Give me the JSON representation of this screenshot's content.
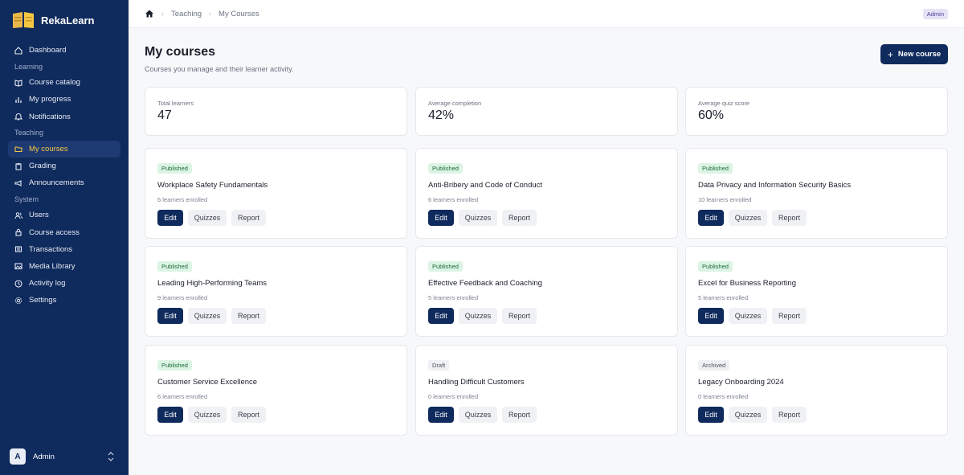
{
  "app": {
    "name": "RekaLearn"
  },
  "sidebar": {
    "items": [
      {
        "type": "item",
        "label": "Dashboard",
        "icon": "home-icon",
        "active": false
      },
      {
        "type": "section",
        "label": "Learning"
      },
      {
        "type": "item",
        "label": "Course catalog",
        "icon": "book-open-icon",
        "active": false
      },
      {
        "type": "item",
        "label": "My progress",
        "icon": "bar-chart-icon",
        "active": false
      },
      {
        "type": "item",
        "label": "Notifications",
        "icon": "bell-icon",
        "active": false
      },
      {
        "type": "section",
        "label": "Teaching"
      },
      {
        "type": "item",
        "label": "My courses",
        "icon": "folder-icon",
        "active": true
      },
      {
        "type": "item",
        "label": "Grading",
        "icon": "clipboard-icon",
        "active": false
      },
      {
        "type": "item",
        "label": "Announcements",
        "icon": "megaphone-icon",
        "active": false
      },
      {
        "type": "section",
        "label": "System"
      },
      {
        "type": "item",
        "label": "Users",
        "icon": "users-icon",
        "active": false
      },
      {
        "type": "item",
        "label": "Course access",
        "icon": "lock-icon",
        "active": false
      },
      {
        "type": "item",
        "label": "Transactions",
        "icon": "receipt-icon",
        "active": false
      },
      {
        "type": "item",
        "label": "Media Library",
        "icon": "image-icon",
        "active": false
      },
      {
        "type": "item",
        "label": "Activity log",
        "icon": "clock-icon",
        "active": false
      },
      {
        "type": "item",
        "label": "Settings",
        "icon": "gear-icon",
        "active": false
      }
    ],
    "user": {
      "initial": "A",
      "name": "Admin"
    }
  },
  "topbar": {
    "breadcrumb": [
      "Teaching",
      "My Courses"
    ],
    "role_badge": "Admin"
  },
  "page": {
    "title": "My courses",
    "subtitle": "Courses you manage and their learner activity.",
    "new_button": "New course"
  },
  "stats": [
    {
      "label": "Total learners",
      "value": "47"
    },
    {
      "label": "Average completion",
      "value": "42%"
    },
    {
      "label": "Average quiz score",
      "value": "60%"
    }
  ],
  "courses": [
    {
      "status": "Published",
      "title": "Workplace Safety Fundamentals",
      "meta": "6 learners enrolled"
    },
    {
      "status": "Published",
      "title": "Anti-Bribery and Code of Conduct",
      "meta": "6 learners enrolled"
    },
    {
      "status": "Published",
      "title": "Data Privacy and Information Security Basics",
      "meta": "10 learners enrolled"
    },
    {
      "status": "Published",
      "title": "Leading High-Performing Teams",
      "meta": "9 learners enrolled"
    },
    {
      "status": "Published",
      "title": "Effective Feedback and Coaching",
      "meta": "5 learners enrolled"
    },
    {
      "status": "Published",
      "title": "Excel for Business Reporting",
      "meta": "5 learners enrolled"
    },
    {
      "status": "Published",
      "title": "Customer Service Excellence",
      "meta": "6 learners enrolled"
    },
    {
      "status": "Draft",
      "title": "Handling Difficult Customers",
      "meta": "0 learners enrolled"
    },
    {
      "status": "Archived",
      "title": "Legacy Onboarding 2024",
      "meta": "0 learners enrolled"
    }
  ],
  "card_actions": {
    "edit": "Edit",
    "quizzes": "Quizzes",
    "report": "Report"
  },
  "colors": {
    "sidebar": "#0f2a5c",
    "accent": "#f5c842",
    "primary_button": "#0f2a5c",
    "published_bg": "#dcf4e4"
  }
}
